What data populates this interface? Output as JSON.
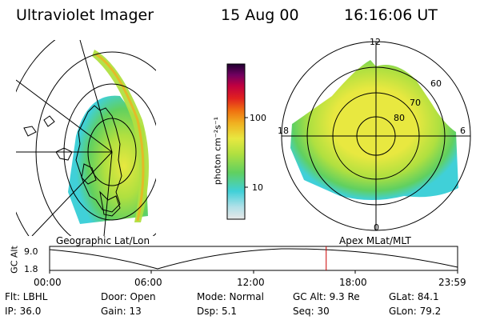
{
  "header": {
    "instrument": "Ultraviolet Imager",
    "date": "15 Aug 00",
    "time": "16:16:06 UT"
  },
  "geo_panel": {
    "label": "Geographic Lat/Lon"
  },
  "colorbar": {
    "unit": "photon cm⁻²s⁻¹",
    "ticks": [
      "100",
      "10"
    ],
    "scale": "log",
    "colors": [
      "#e8e8e8",
      "#b0e0e8",
      "#40d0d8",
      "#60d060",
      "#b0e040",
      "#e8e840",
      "#f0b020",
      "#f07010",
      "#e02020",
      "#c00040",
      "#700060",
      "#200030"
    ]
  },
  "polar_panel": {
    "label": "Apex MLat/MLT",
    "mlt_labels": {
      "top": "12",
      "left": "18",
      "right": "6",
      "bottom": "0"
    },
    "lat_labels": [
      "60",
      "70",
      "80"
    ]
  },
  "altitude_plot": {
    "ylabel": "GC Alt",
    "yticks": [
      "9.0",
      "1.8"
    ],
    "xticks": [
      "00:00",
      "06:00",
      "12:00",
      "18:00",
      "23:59"
    ],
    "marker_color": "#cc0000",
    "marker_time_hours": 16.27
  },
  "info": {
    "filter": "Flt: LBHL",
    "door": "Door: Open",
    "mode": "Mode: Normal",
    "gc_alt": "GC Alt: 9.3 Re",
    "glat": "GLat:  84.1",
    "ip": "IP: 36.0",
    "gain": "Gain: 13",
    "dsp": "Dsp:    5.1",
    "seq": "Seq: 30",
    "glon": "GLon:  79.2"
  }
}
